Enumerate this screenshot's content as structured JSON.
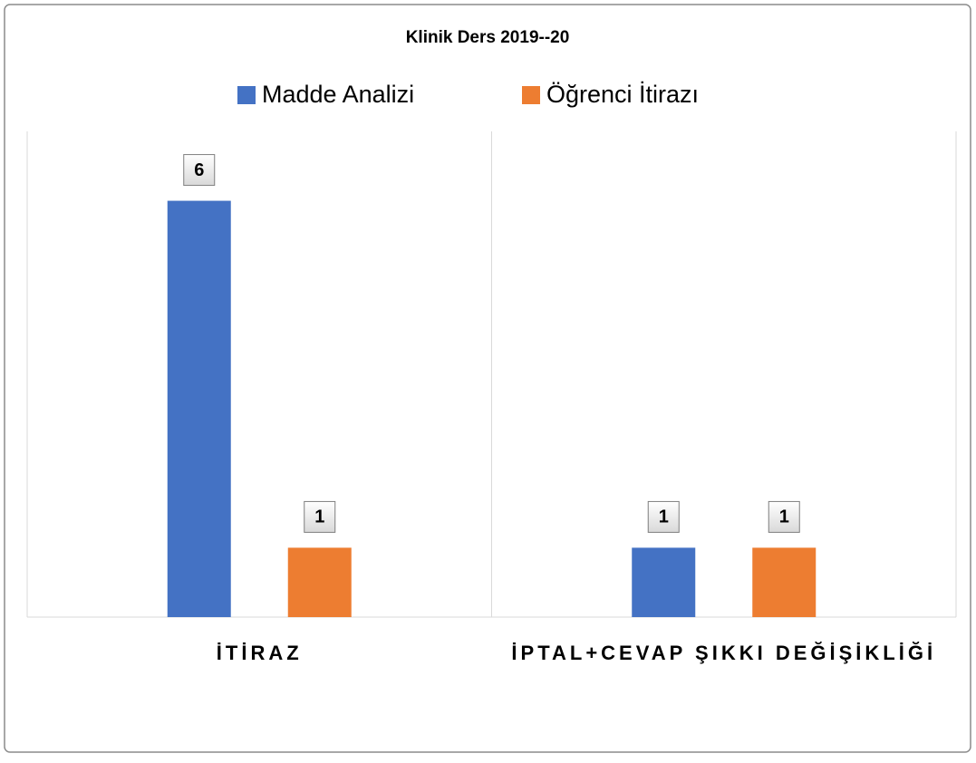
{
  "chart_data": {
    "type": "bar",
    "title": "Klinik Ders 2019--20",
    "categories": [
      "İTİRAZ",
      "İPTAL+CEVAP ŞIKKI DEĞİŞİKLİĞİ"
    ],
    "series": [
      {
        "name": "Madde Analizi",
        "color": "#4472c4",
        "values": [
          6,
          1
        ]
      },
      {
        "name": "Öğrenci İtirazı",
        "color": "#ed7d31",
        "values": [
          1,
          1
        ]
      }
    ],
    "ylim": [
      0,
      7
    ],
    "legend": "top"
  }
}
